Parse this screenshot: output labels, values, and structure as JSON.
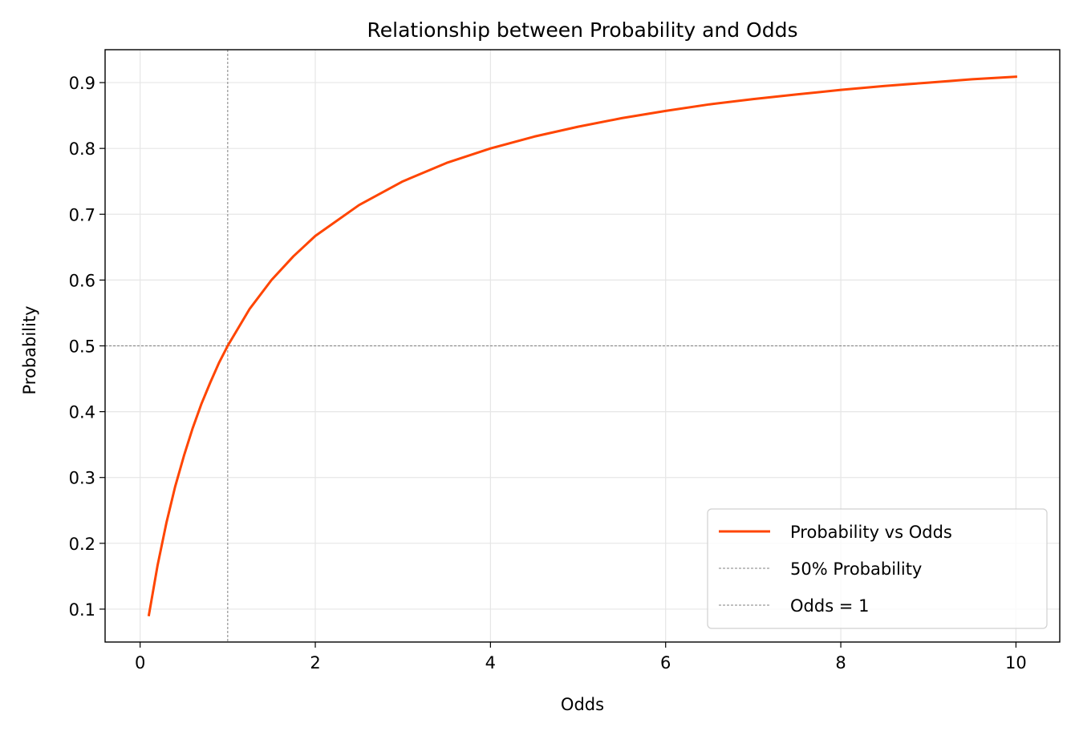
{
  "chart_data": {
    "type": "line",
    "title": "Relationship between Probability and Odds",
    "xlabel": "Odds",
    "ylabel": "Probability",
    "xlim": [
      -0.4,
      10.5
    ],
    "ylim": [
      0.05,
      0.95
    ],
    "x_ticks": [
      0,
      2,
      4,
      6,
      8,
      10
    ],
    "y_ticks": [
      0.1,
      0.2,
      0.3,
      0.4,
      0.5,
      0.6,
      0.7,
      0.8,
      0.9
    ],
    "grid": true,
    "legend_position": "lower-right",
    "series": [
      {
        "name": "Probability vs Odds",
        "color": "#ff4500",
        "style": "solid",
        "x": [
          0.1,
          0.2,
          0.3,
          0.4,
          0.5,
          0.6,
          0.7,
          0.8,
          0.9,
          1.0,
          1.25,
          1.5,
          1.75,
          2.0,
          2.5,
          3.0,
          3.5,
          4.0,
          4.5,
          5.0,
          5.5,
          6.0,
          6.5,
          7.0,
          7.5,
          8.0,
          8.5,
          9.0,
          9.5,
          10.0
        ],
        "y": [
          0.091,
          0.167,
          0.231,
          0.286,
          0.333,
          0.375,
          0.412,
          0.444,
          0.474,
          0.5,
          0.556,
          0.6,
          0.636,
          0.667,
          0.714,
          0.75,
          0.778,
          0.8,
          0.818,
          0.833,
          0.846,
          0.857,
          0.867,
          0.875,
          0.882,
          0.889,
          0.895,
          0.9,
          0.905,
          0.909
        ]
      }
    ],
    "reference_lines": [
      {
        "name": "50% Probability",
        "orientation": "horizontal",
        "value": 0.5,
        "color": "#808080",
        "style": "dashed"
      },
      {
        "name": "Odds = 1",
        "orientation": "vertical",
        "value": 1,
        "color": "#808080",
        "style": "dashed"
      }
    ]
  }
}
